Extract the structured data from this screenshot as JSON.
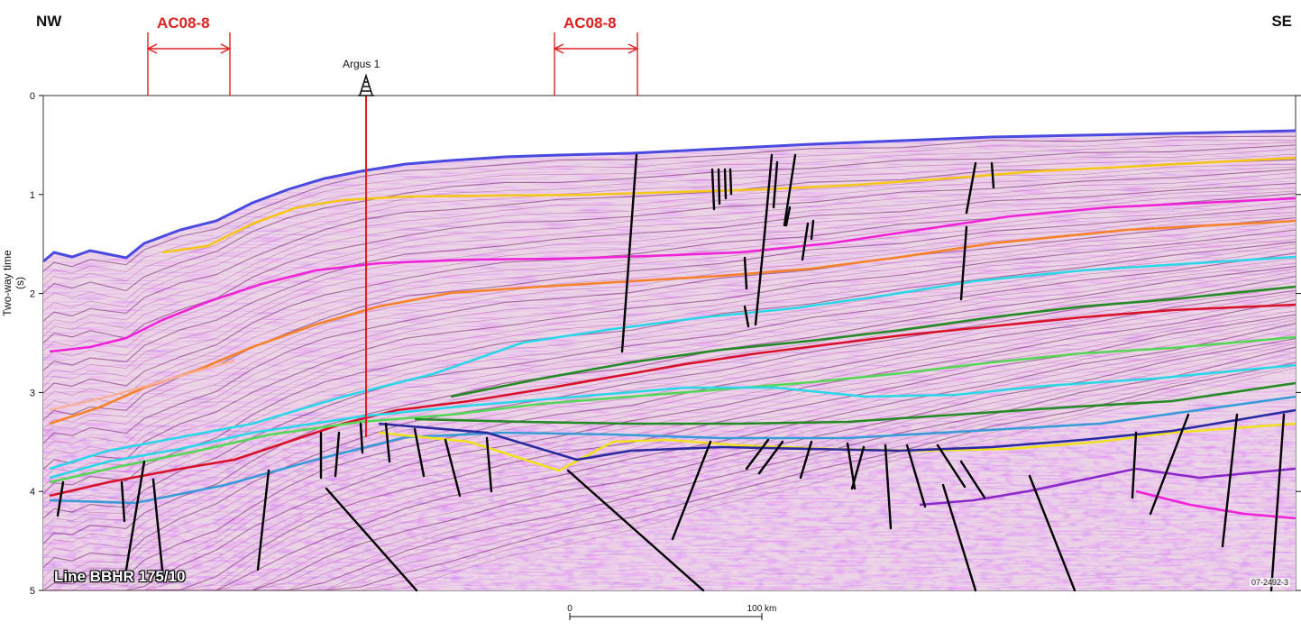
{
  "header": {
    "left_direction": "NW",
    "right_direction": "SE"
  },
  "line_name": "Line BBHR 175/10",
  "figure_code": "07-2492-3",
  "well": {
    "name": "Argus 1"
  },
  "ac_blocks": [
    {
      "label": "AC08-8"
    },
    {
      "label": "AC08-8"
    }
  ],
  "axis": {
    "ylabel": "Two-way time (s)",
    "ticks": [
      "0",
      "1",
      "2",
      "3",
      "4",
      "5"
    ]
  },
  "scale_bar": {
    "start_label": "0",
    "end_label": "100 km"
  },
  "colors": {
    "seabed": "#4a4ae0",
    "well": "#e02020",
    "faults": "#000000",
    "horizons": [
      "#f5c518",
      "#f022d8",
      "#f5822a",
      "#2ad6e8",
      "#248a24",
      "#d8102a",
      "#f5b0a0",
      "#55d655",
      "#3a9ad8",
      "#f0e020",
      "#2a2aa0",
      "#8a28c8"
    ]
  }
}
